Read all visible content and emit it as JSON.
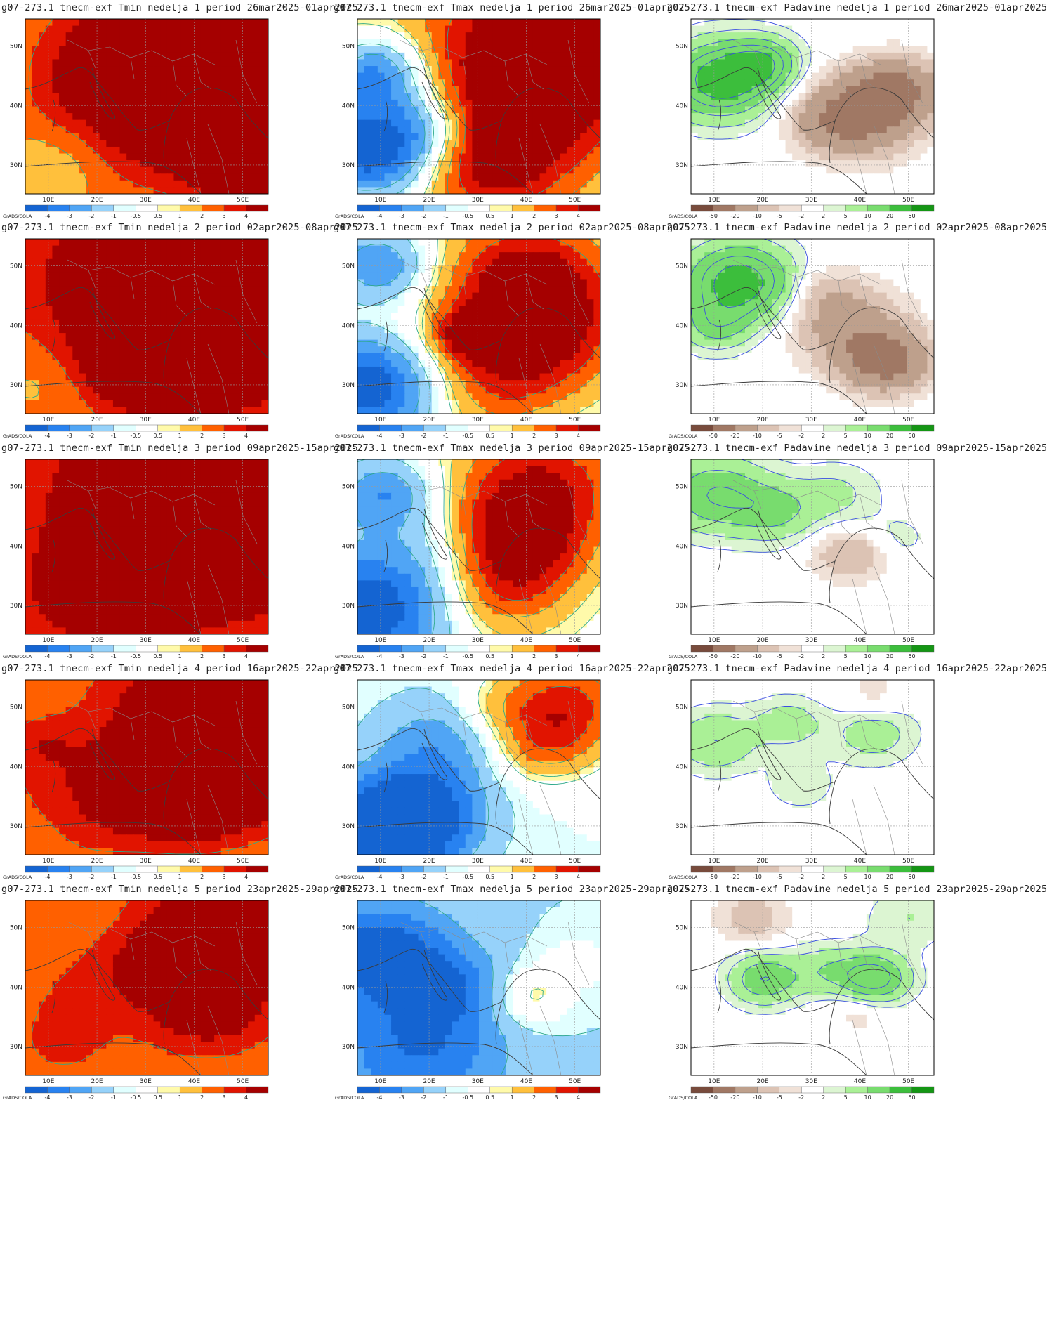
{
  "credit": "GrADS/COLA",
  "axes": {
    "lon_labels": [
      "10E",
      "20E",
      "30E",
      "40E",
      "50E"
    ],
    "lat_labels": [
      "50N",
      "40N",
      "30N"
    ]
  },
  "legends": {
    "temp": {
      "labels": [
        "-4",
        "-3",
        "-2",
        "-1",
        "-0.5",
        "0.5",
        "1",
        "2",
        "3",
        "4"
      ],
      "colors": [
        "#1464d2",
        "#2882f0",
        "#50a5f5",
        "#96d2fa",
        "#e1ffff",
        "#ffffff",
        "#fffaaa",
        "#ffc03c",
        "#ff6000",
        "#e11400",
        "#a50000"
      ]
    },
    "precip": {
      "labels": [
        "-50",
        "-20",
        "-10",
        "-5",
        "-2",
        "2",
        "5",
        "10",
        "20",
        "50"
      ],
      "colors": [
        "#784b3c",
        "#a07864",
        "#bea08c",
        "#dcc3b4",
        "#f0e1d7",
        "#ffffff",
        "#dcf5d2",
        "#aaf096",
        "#78dc6e",
        "#3cbe3c",
        "#149614"
      ]
    }
  },
  "rows": [
    {
      "week": "1",
      "titles": [
        "g07-273.1 tnecm-exf Tmin nedelja 1 period 26mar2025-01apr2025",
        "g07-273.1 tnecm-exf Tmax nedelja 1 period 26mar2025-01apr2025",
        "g07-273.1 tnecm-exf Padavine nedelja 1 period 26mar2025-01apr2025"
      ]
    },
    {
      "week": "2",
      "titles": [
        "g07-273.1 tnecm-exf Tmin nedelja 2 period 02apr2025-08apr2025",
        "g07-273.1 tnecm-exf Tmax nedelja 2 period 02apr2025-08apr2025",
        "g07-273.1 tnecm-exf Padavine nedelja 2 period 02apr2025-08apr2025"
      ]
    },
    {
      "week": "3",
      "titles": [
        "g07-273.1 tnecm-exf Tmin nedelja 3 period 09apr2025-15apr2025",
        "g07-273.1 tnecm-exf Tmax nedelja 3 period 09apr2025-15apr2025",
        "g07-273.1 tnecm-exf Padavine nedelja 3 period 09apr2025-15apr2025"
      ]
    },
    {
      "week": "4",
      "titles": [
        "g07-273.1 tnecm-exf Tmin nedelja 4 period 16apr2025-22apr2025",
        "g07-273.1 tnecm-exf Tmax nedelja 4 period 16apr2025-22apr2025",
        "g07-273.1 tnecm-exf Padavine nedelja 4 period 16apr2025-22apr2025"
      ]
    },
    {
      "week": "5",
      "titles": [
        "g07-273.1 tnecm-exf Tmin nedelja 5 period 23apr2025-29apr2025",
        "g07-273.1 tnecm-exf Tmax nedelja 5 period 23apr2025-29apr2025",
        "g07-273.1 tnecm-exf Padavine nedelja 5 period 23apr2025-29apr2025"
      ]
    }
  ],
  "fields": [
    [
      {
        "kind": "temp",
        "base": 2,
        "blobs": [
          [
            0.5,
            0.4,
            0.25,
            4
          ],
          [
            0.75,
            0.45,
            0.3,
            4
          ],
          [
            0.7,
            0.15,
            0.3,
            4
          ],
          [
            0.1,
            0.85,
            0.15,
            -1
          ],
          [
            0.35,
            0.6,
            0.15,
            -1
          ],
          [
            0.9,
            0.9,
            0.12,
            4
          ]
        ]
      },
      {
        "kind": "temp",
        "base": 1,
        "blobs": [
          [
            0.05,
            0.75,
            0.2,
            -6
          ],
          [
            0.08,
            0.3,
            0.15,
            -4
          ],
          [
            0.3,
            0.6,
            0.15,
            -2
          ],
          [
            0.75,
            0.1,
            0.3,
            4
          ],
          [
            0.7,
            0.5,
            0.25,
            4
          ],
          [
            0.55,
            0.85,
            0.2,
            3
          ]
        ]
      },
      {
        "kind": "precip",
        "base": 0,
        "blobs": [
          [
            0.12,
            0.35,
            0.15,
            25
          ],
          [
            0.3,
            0.25,
            0.1,
            15
          ],
          [
            0.7,
            0.55,
            0.15,
            -25
          ],
          [
            0.85,
            0.4,
            0.12,
            -20
          ],
          [
            0.55,
            0.6,
            0.1,
            -8
          ]
        ]
      }
    ],
    [
      {
        "kind": "temp",
        "base": 2.5,
        "blobs": [
          [
            0.6,
            0.2,
            0.35,
            4
          ],
          [
            0.75,
            0.55,
            0.3,
            4
          ],
          [
            0.1,
            0.8,
            0.18,
            -1
          ],
          [
            0.15,
            0.35,
            0.12,
            0
          ],
          [
            0.45,
            0.7,
            0.15,
            3
          ]
        ]
      },
      {
        "kind": "temp",
        "base": 0,
        "blobs": [
          [
            0.05,
            0.85,
            0.2,
            -5
          ],
          [
            0.1,
            0.15,
            0.15,
            -3
          ],
          [
            0.7,
            0.2,
            0.25,
            4
          ],
          [
            0.75,
            0.55,
            0.25,
            4
          ],
          [
            0.55,
            0.85,
            0.2,
            2
          ],
          [
            0.45,
            0.55,
            0.1,
            3
          ]
        ]
      },
      {
        "kind": "precip",
        "base": 0,
        "blobs": [
          [
            0.2,
            0.25,
            0.15,
            25
          ],
          [
            0.1,
            0.5,
            0.1,
            10
          ],
          [
            0.65,
            0.5,
            0.15,
            -15
          ],
          [
            0.8,
            0.7,
            0.12,
            -25
          ],
          [
            0.55,
            0.3,
            0.1,
            -5
          ]
        ]
      }
    ],
    [
      {
        "kind": "temp",
        "base": 2.5,
        "blobs": [
          [
            0.6,
            0.2,
            0.35,
            4
          ],
          [
            0.75,
            0.55,
            0.25,
            4
          ],
          [
            0.15,
            0.8,
            0.15,
            0.5
          ],
          [
            0.3,
            0.5,
            0.12,
            1
          ],
          [
            0.35,
            0.75,
            0.2,
            3
          ]
        ]
      },
      {
        "kind": "temp",
        "base": 0,
        "blobs": [
          [
            0.05,
            0.85,
            0.25,
            -5
          ],
          [
            0.12,
            0.2,
            0.15,
            -3
          ],
          [
            0.75,
            0.15,
            0.25,
            4
          ],
          [
            0.65,
            0.5,
            0.2,
            4
          ],
          [
            0.6,
            0.8,
            0.2,
            2
          ],
          [
            0.35,
            0.5,
            0.15,
            -1
          ]
        ]
      },
      {
        "kind": "precip",
        "base": 0,
        "blobs": [
          [
            0.1,
            0.2,
            0.15,
            15
          ],
          [
            0.35,
            0.3,
            0.12,
            10
          ],
          [
            0.65,
            0.55,
            0.1,
            -10
          ],
          [
            0.6,
            0.2,
            0.12,
            6
          ],
          [
            0.85,
            0.45,
            0.1,
            3
          ]
        ]
      }
    ],
    [
      {
        "kind": "temp",
        "base": 2,
        "blobs": [
          [
            0.75,
            0.2,
            0.3,
            4
          ],
          [
            0.8,
            0.6,
            0.2,
            4
          ],
          [
            0.2,
            0.55,
            0.2,
            1.5
          ],
          [
            0.3,
            0.85,
            0.15,
            1
          ],
          [
            0.05,
            0.35,
            0.1,
            1
          ],
          [
            0.6,
            0.7,
            0.15,
            3
          ]
        ]
      },
      {
        "kind": "temp",
        "base": -0.5,
        "blobs": [
          [
            0.1,
            0.9,
            0.2,
            -5
          ],
          [
            0.25,
            0.75,
            0.2,
            -3
          ],
          [
            0.35,
            0.35,
            0.2,
            -2
          ],
          [
            0.85,
            0.15,
            0.2,
            4
          ],
          [
            0.75,
            0.4,
            0.15,
            2
          ],
          [
            0.55,
            0.15,
            0.12,
            1
          ]
        ]
      },
      {
        "kind": "precip",
        "base": 0,
        "blobs": [
          [
            0.1,
            0.35,
            0.12,
            10
          ],
          [
            0.4,
            0.25,
            0.1,
            8
          ],
          [
            0.75,
            0.3,
            0.12,
            8
          ],
          [
            0.45,
            0.6,
            0.1,
            4
          ],
          [
            0.75,
            0.1,
            0.1,
            -4
          ]
        ]
      }
    ],
    [
      {
        "kind": "temp",
        "base": 2,
        "blobs": [
          [
            0.85,
            0.1,
            0.25,
            4
          ],
          [
            0.75,
            0.6,
            0.2,
            3
          ],
          [
            0.2,
            0.55,
            0.2,
            1
          ],
          [
            0.15,
            0.85,
            0.15,
            1
          ],
          [
            0.5,
            0.35,
            0.15,
            1.5
          ]
        ]
      },
      {
        "kind": "temp",
        "base": -1,
        "blobs": [
          [
            0.1,
            0.3,
            0.2,
            -4
          ],
          [
            0.25,
            0.85,
            0.25,
            -3
          ],
          [
            0.4,
            0.5,
            0.15,
            -2
          ],
          [
            0.7,
            0.55,
            0.12,
            2
          ],
          [
            0.9,
            0.35,
            0.1,
            1
          ]
        ]
      },
      {
        "kind": "precip",
        "base": 0,
        "blobs": [
          [
            0.3,
            0.45,
            0.1,
            15
          ],
          [
            0.75,
            0.45,
            0.1,
            20
          ],
          [
            0.55,
            0.4,
            0.1,
            8
          ],
          [
            0.25,
            0.1,
            0.1,
            -8
          ],
          [
            0.7,
            0.6,
            0.1,
            -5
          ],
          [
            0.9,
            0.1,
            0.12,
            5
          ]
        ]
      }
    ]
  ]
}
